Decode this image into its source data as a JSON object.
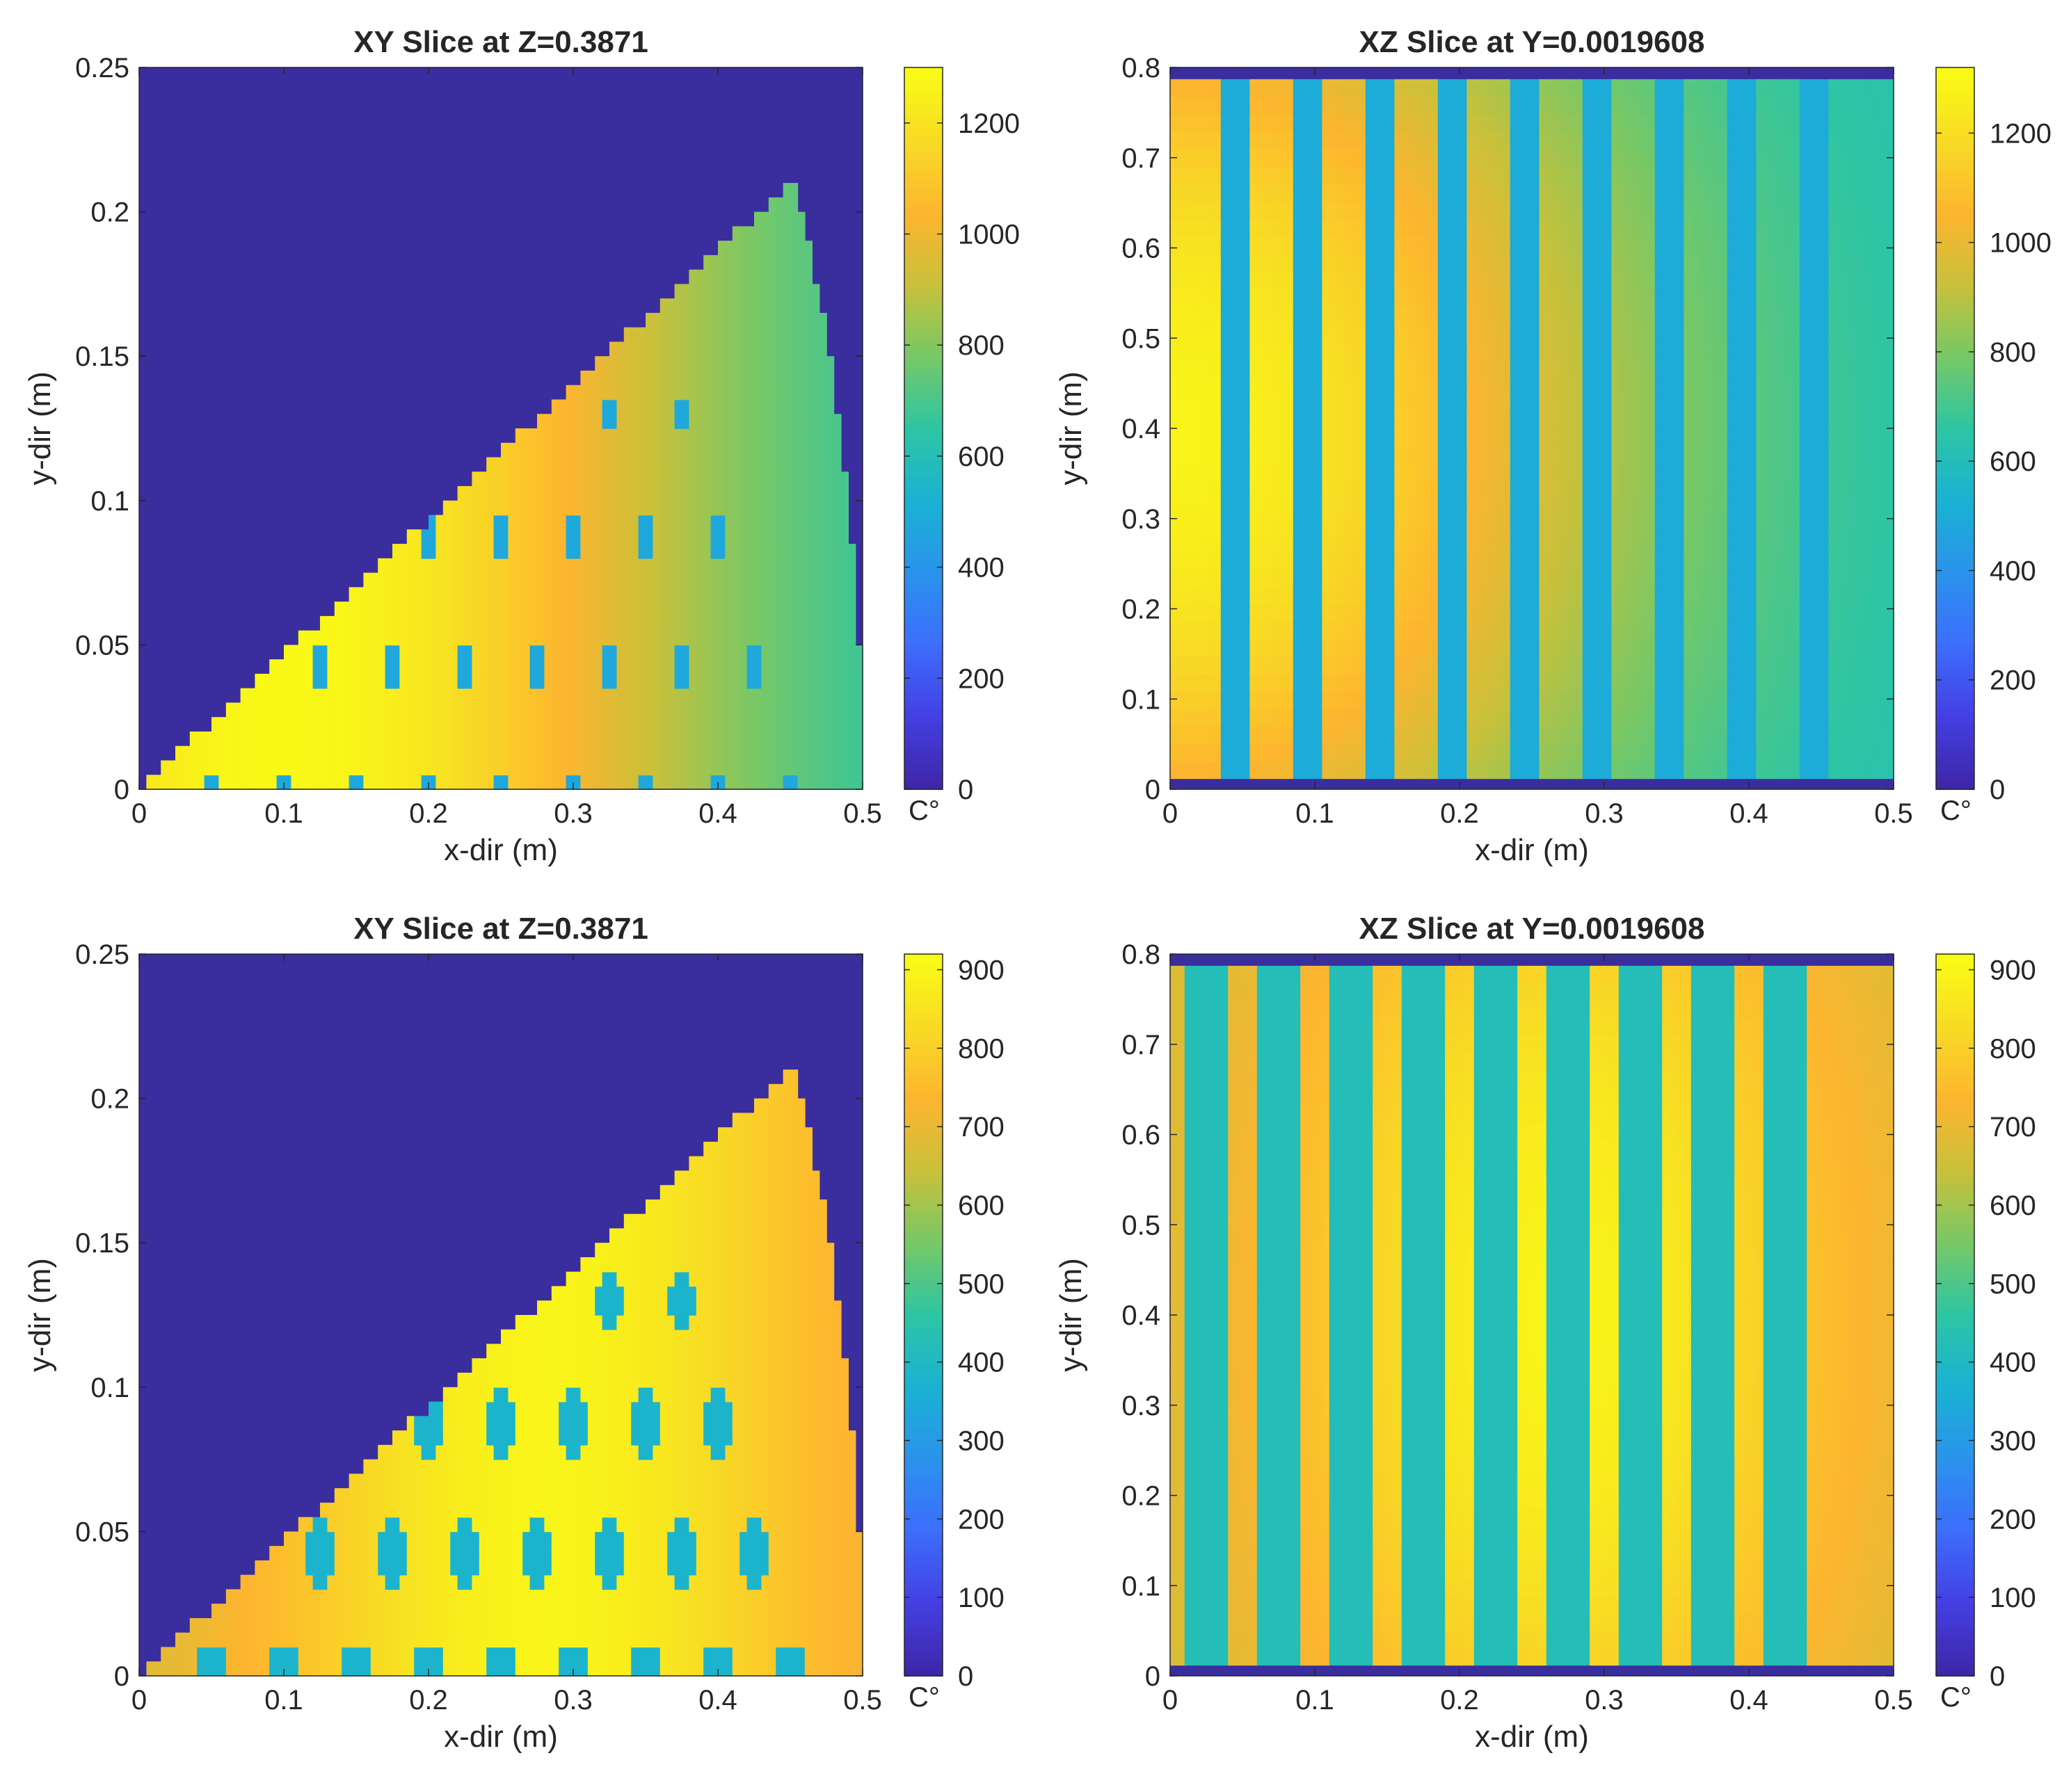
{
  "colors": {
    "background": "#3a2d9e",
    "ticks": "#262626",
    "colormap": [
      "#3e26a8",
      "#4440e4",
      "#3d6efc",
      "#2a93ec",
      "#1ab2d3",
      "#2dc5a4",
      "#76c867",
      "#c7c13b",
      "#fdb52f",
      "#f8da25",
      "#f9fb15"
    ]
  },
  "chart_data": [
    {
      "id": "top-left",
      "type": "heatmap",
      "title": "XY Slice at Z=0.3871",
      "xlabel": "x-dir (m)",
      "ylabel": "y-dir (m)",
      "xlim": [
        0,
        0.5
      ],
      "ylim": [
        0,
        0.25
      ],
      "xticks": [
        0,
        0.1,
        0.2,
        0.3,
        0.4,
        0.5
      ],
      "xtick_labels": [
        "0",
        "0.1",
        "0.2",
        "0.3",
        "0.4",
        "0.5"
      ],
      "yticks": [
        0,
        0.05,
        0.1,
        0.15,
        0.2,
        0.25
      ],
      "ytick_labels": [
        "0",
        "0.05",
        "0.1",
        "0.15",
        "0.2",
        "0.25"
      ],
      "colorbar": {
        "min": 0,
        "max": 1300,
        "ticks": [
          0,
          200,
          400,
          600,
          800,
          1000,
          1200
        ],
        "tick_labels": [
          "0",
          "200",
          "400",
          "600",
          "800",
          "1000",
          "1200"
        ],
        "unit": "C°"
      },
      "domain": "sector bounded by y = 0.467x (x ≤ 0.45) and arc r ≈ 0.5 m",
      "field": {
        "kind": "xy",
        "hot_x": 0.1,
        "hot": 1290,
        "cold": 560,
        "spread": 0.3
      },
      "holes": {
        "value": 480,
        "rows": [
          {
            "y": 0.0,
            "xs": [
              0.05,
              0.1,
              0.15,
              0.2,
              0.25,
              0.3,
              0.35,
              0.4,
              0.45
            ],
            "rx": 0.007,
            "ry": 0.006
          },
          {
            "y": 0.043,
            "xs": [
              0.125,
              0.175,
              0.225,
              0.275,
              0.325,
              0.375,
              0.425
            ],
            "rx": 0.007,
            "ry": 0.008
          },
          {
            "y": 0.087,
            "xs": [
              0.2,
              0.25,
              0.3,
              0.35,
              0.4
            ],
            "rx": 0.007,
            "ry": 0.008
          },
          {
            "y": 0.13,
            "xs": [
              0.325,
              0.375
            ],
            "rx": 0.007,
            "ry": 0.007
          }
        ]
      }
    },
    {
      "id": "top-right",
      "type": "heatmap",
      "title": "XZ Slice at Y=0.0019608",
      "xlabel": "x-dir (m)",
      "ylabel": "y-dir (m)",
      "xlim": [
        0,
        0.5
      ],
      "ylim": [
        0,
        0.8
      ],
      "xticks": [
        0,
        0.1,
        0.2,
        0.3,
        0.4,
        0.5
      ],
      "xtick_labels": [
        "0",
        "0.1",
        "0.2",
        "0.3",
        "0.4",
        "0.5"
      ],
      "yticks": [
        0,
        0.1,
        0.2,
        0.3,
        0.4,
        0.5,
        0.6,
        0.7,
        0.8
      ],
      "ytick_labels": [
        "0",
        "0.1",
        "0.2",
        "0.3",
        "0.4",
        "0.5",
        "0.6",
        "0.7",
        "0.8"
      ],
      "colorbar": {
        "min": 0,
        "max": 1320,
        "ticks": [
          0,
          200,
          400,
          600,
          800,
          1000,
          1200
        ],
        "tick_labels": [
          "0",
          "200",
          "400",
          "600",
          "800",
          "1000",
          "1200"
        ],
        "unit": "C°"
      },
      "field": {
        "kind": "xz",
        "z_band": [
          0.012,
          0.787
        ],
        "hot_x": 0.0,
        "hot": 1290,
        "cold": 600,
        "spread": 0.32,
        "edge_drop": 0.35
      },
      "channels": {
        "value": 500,
        "centers": [
          0.045,
          0.095,
          0.145,
          0.195,
          0.245,
          0.295,
          0.345,
          0.395,
          0.445
        ],
        "half_width": 0.006
      }
    },
    {
      "id": "bottom-left",
      "type": "heatmap",
      "title": "XY Slice at Z=0.3871",
      "xlabel": "x-dir (m)",
      "ylabel": "y-dir (m)",
      "xlim": [
        0,
        0.5
      ],
      "ylim": [
        0,
        0.25
      ],
      "xticks": [
        0,
        0.1,
        0.2,
        0.3,
        0.4,
        0.5
      ],
      "xtick_labels": [
        "0",
        "0.1",
        "0.2",
        "0.3",
        "0.4",
        "0.5"
      ],
      "yticks": [
        0,
        0.05,
        0.1,
        0.15,
        0.2,
        0.25
      ],
      "ytick_labels": [
        "0",
        "0.05",
        "0.1",
        "0.15",
        "0.2",
        "0.25"
      ],
      "colorbar": {
        "min": 0,
        "max": 920,
        "ticks": [
          0,
          100,
          200,
          300,
          400,
          500,
          600,
          700,
          800,
          900
        ],
        "tick_labels": [
          "0",
          "100",
          "200",
          "300",
          "400",
          "500",
          "600",
          "700",
          "800",
          "900"
        ],
        "unit": "C°"
      },
      "domain": "sector bounded by y = 0.467x (x ≤ 0.45) and arc r ≈ 0.5 m",
      "field": {
        "kind": "xy",
        "hot_x": 0.28,
        "hot": 900,
        "cold": 650,
        "spread": 0.2
      },
      "holes": {
        "value": 380,
        "rows": [
          {
            "y": 0.0,
            "xs": [
              0.05,
              0.1,
              0.15,
              0.2,
              0.25,
              0.3,
              0.35,
              0.4,
              0.45
            ],
            "rx": 0.012,
            "ry": 0.01
          },
          {
            "y": 0.043,
            "xs": [
              0.125,
              0.175,
              0.225,
              0.275,
              0.325,
              0.375,
              0.425
            ],
            "rx": 0.012,
            "ry": 0.012
          },
          {
            "y": 0.087,
            "xs": [
              0.2,
              0.25,
              0.3,
              0.35,
              0.4
            ],
            "rx": 0.011,
            "ry": 0.011
          },
          {
            "y": 0.13,
            "xs": [
              0.325,
              0.375
            ],
            "rx": 0.009,
            "ry": 0.009
          }
        ]
      }
    },
    {
      "id": "bottom-right",
      "type": "heatmap",
      "title": "XZ Slice at Y=0.0019608",
      "xlabel": "x-dir (m)",
      "ylabel": "y-dir (m)",
      "xlim": [
        0,
        0.5
      ],
      "ylim": [
        0,
        0.8
      ],
      "xticks": [
        0,
        0.1,
        0.2,
        0.3,
        0.4,
        0.5
      ],
      "xtick_labels": [
        "0",
        "0.1",
        "0.2",
        "0.3",
        "0.4",
        "0.5"
      ],
      "yticks": [
        0,
        0.1,
        0.2,
        0.3,
        0.4,
        0.5,
        0.6,
        0.7,
        0.8
      ],
      "ytick_labels": [
        "0",
        "0.1",
        "0.2",
        "0.3",
        "0.4",
        "0.5",
        "0.6",
        "0.7",
        "0.8"
      ],
      "colorbar": {
        "min": 0,
        "max": 920,
        "ticks": [
          0,
          100,
          200,
          300,
          400,
          500,
          600,
          700,
          800,
          900
        ],
        "tick_labels": [
          "0",
          "100",
          "200",
          "300",
          "400",
          "500",
          "600",
          "700",
          "800",
          "900"
        ],
        "unit": "C°"
      },
      "field": {
        "kind": "xz",
        "z_band": [
          0.012,
          0.787
        ],
        "hot_x": 0.27,
        "hot": 900,
        "cold": 650,
        "spread": 0.2,
        "edge_drop": 0.35
      },
      "channels": {
        "value": 420,
        "centers": [
          0.025,
          0.075,
          0.125,
          0.175,
          0.225,
          0.275,
          0.325,
          0.375,
          0.425
        ],
        "half_width": 0.011
      }
    }
  ]
}
